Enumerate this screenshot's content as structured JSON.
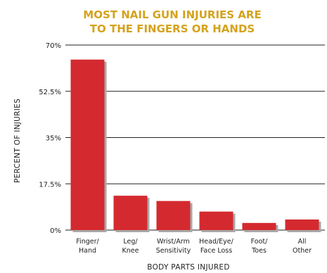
{
  "chart_data": {
    "type": "bar",
    "title_lines": [
      "MOST NAIL GUN INJURIES ARE",
      "TO THE FINGERS OR HANDS"
    ],
    "xlabel": "BODY PARTS INJURED",
    "ylabel": "PERCENT OF INJURIES",
    "ylim": [
      0,
      70
    ],
    "yticks": [
      0,
      17.5,
      35,
      52.5,
      70
    ],
    "ytick_labels": [
      "0%",
      "17.5%",
      "35%",
      "52.5%",
      "70%"
    ],
    "categories": [
      [
        "Finger/",
        "Hand"
      ],
      [
        "Leg/",
        "Knee"
      ],
      [
        "Wrist/Arm",
        "Sensitivity"
      ],
      [
        "Head/Eye/",
        "Face Loss"
      ],
      [
        "Foot/",
        "Toes"
      ],
      [
        "All",
        "Other"
      ]
    ],
    "values": [
      64.5,
      13,
      11,
      7,
      2.7,
      4
    ],
    "grid": true,
    "colors": {
      "bar": "#d42a2f",
      "shadow": "#a8a8a8",
      "title": "#d4a21c",
      "grid": "#222222"
    }
  }
}
